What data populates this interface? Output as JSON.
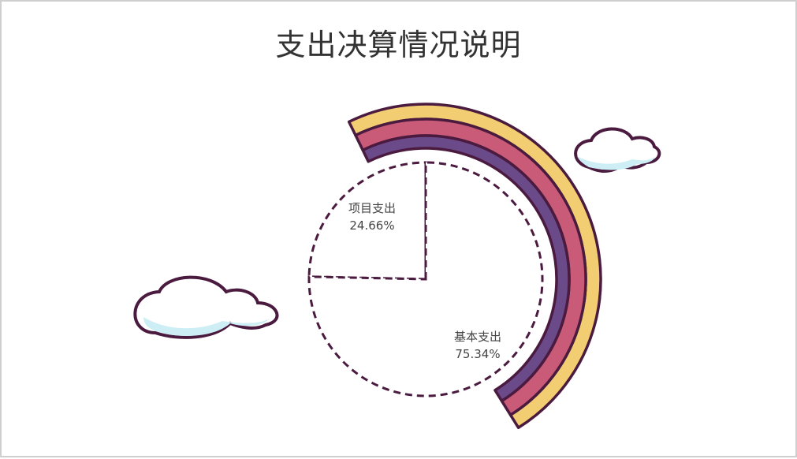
{
  "chart_data": {
    "type": "pie",
    "title": "支出决算情况说明",
    "slices": [
      {
        "name": "项目支出",
        "percent_label": "24.66%",
        "value": 24.66
      },
      {
        "name": "基本支出",
        "percent_label": "75.34%",
        "value": 75.34
      }
    ],
    "colors": {
      "outline": "#4a1a3f",
      "band_outer": "#f2cd72",
      "band_middle": "#c95b78",
      "band_inner": "#6b4a8a",
      "cloud_fill": "#ffffff",
      "cloud_shade": "#cdeef4"
    }
  }
}
